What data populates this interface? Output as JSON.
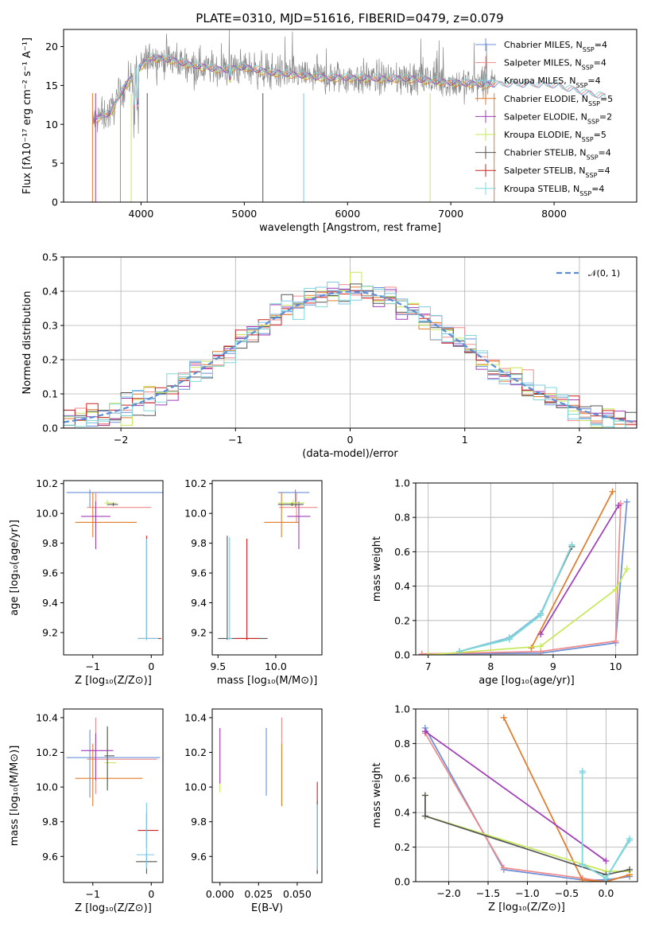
{
  "title": "PLATE=0310, MJD=51616, FIBERID=0479, z=0.079",
  "colors": [
    "#6a8fd8",
    "#f08a8a",
    "#7ec8e3",
    "#e07b2a",
    "#a03cb8",
    "#c7e85a",
    "#555555",
    "#cc2222",
    "#7fd8d8"
  ],
  "chart_data": [
    {
      "type": "line",
      "id": "spectrum",
      "xlabel": "wavelength [Angstrom, rest frame]",
      "ylabel": "Flux [fλ10⁻¹⁷ erg cm⁻² s⁻¹ A⁻¹]",
      "xlim": [
        3250,
        8800
      ],
      "ylim": [
        0,
        22.2
      ],
      "xticks": [
        4000,
        5000,
        6000,
        7000,
        8000
      ],
      "yticks": [
        0,
        5,
        10,
        15,
        20
      ],
      "legend_placement": "upper right",
      "series": [
        {
          "name": "Chabrier MILES, N_SSP=4"
        },
        {
          "name": "Salpeter MILES, N_SSP=4"
        },
        {
          "name": "Kroupa MILES, N_SSP=4"
        },
        {
          "name": "Chabrier ELODIE, N_SSP=5"
        },
        {
          "name": "Salpeter ELODIE, N_SSP=2"
        },
        {
          "name": "Kroupa ELODIE, N_SSP=5"
        },
        {
          "name": "Chabrier STELIB, N_SSP=4"
        },
        {
          "name": "Salpeter STELIB, N_SSP=4"
        },
        {
          "name": "Kroupa STELIB, N_SSP=4"
        }
      ],
      "continuum": [
        [
          3530,
          10.5
        ],
        [
          3700,
          11.5
        ],
        [
          3850,
          15.0
        ],
        [
          4000,
          17.5
        ],
        [
          4100,
          18.6
        ],
        [
          4300,
          18.3
        ],
        [
          4500,
          17.6
        ],
        [
          4800,
          17.0
        ],
        [
          5000,
          17.4
        ],
        [
          5200,
          16.8
        ],
        [
          5500,
          16.4
        ],
        [
          5800,
          16.0
        ],
        [
          6000,
          16.0
        ],
        [
          6300,
          15.9
        ],
        [
          6600,
          15.9
        ],
        [
          7000,
          15.4
        ],
        [
          7400,
          15.1
        ],
        [
          7600,
          15.1
        ],
        [
          8000,
          15.0
        ],
        [
          8300,
          14.0
        ],
        [
          8500,
          13.5
        ]
      ],
      "observed_range": [
        3530,
        7430
      ],
      "model_range": [
        3530,
        8500
      ]
    },
    {
      "type": "line",
      "id": "residuals",
      "xlabel": "(data-model)/error",
      "ylabel": "Normed distribution",
      "xlim": [
        -2.5,
        2.5
      ],
      "ylim": [
        0,
        0.5
      ],
      "xticks": [
        -2,
        -1,
        0,
        1,
        2
      ],
      "xticklabels": [
        "−2",
        "−1",
        "0",
        "1",
        "2"
      ],
      "yticks": [
        0.0,
        0.1,
        0.2,
        0.3,
        0.4,
        0.5
      ],
      "grid": true,
      "reference": {
        "name": "𝒩(0, 1)",
        "mean": 0,
        "sigma": 1
      },
      "legend_placement": "upper right"
    },
    {
      "type": "scatter",
      "id": "age_vs_Z",
      "xlabel": "Z [log₁₀(Z/Z⊙)]",
      "ylabel": "age  [log₁₀(age/yr)]",
      "xlim": [
        -1.5,
        0.2
      ],
      "ylim": [
        9.05,
        10.22
      ],
      "xticks": [
        -1,
        0
      ],
      "xticklabels": [
        "−1",
        "0"
      ],
      "yticks": [
        9.2,
        9.4,
        9.6,
        9.8,
        10.0,
        10.2
      ],
      "points": [
        {
          "x": -1.05,
          "y": 10.14,
          "xerr": [
            0.4,
            1.3
          ],
          "yerr": [
            0.1,
            0.02
          ],
          "c": 0
        },
        {
          "x": -0.95,
          "y": 10.04,
          "xerr": [
            0.15,
            0.95
          ],
          "yerr": [
            0.1,
            0.1
          ],
          "c": 1
        },
        {
          "x": -1.0,
          "y": 9.94,
          "xerr": [
            0.3,
            0.75
          ],
          "yerr": [
            0.1,
            0.2
          ],
          "c": 3
        },
        {
          "x": -0.95,
          "y": 9.98,
          "xerr": [
            0.25,
            0.25
          ],
          "yerr": [
            0.22,
            0.1
          ],
          "c": 4
        },
        {
          "x": -0.75,
          "y": 10.07,
          "xerr": [
            0.05,
            0.15
          ],
          "yerr": [
            0.02,
            0.02
          ],
          "c": 5
        },
        {
          "x": -0.65,
          "y": 10.06,
          "xerr": [
            0.1,
            0.08
          ],
          "yerr": [
            0.01,
            0.01
          ],
          "c": 6
        },
        {
          "x": -0.08,
          "y": 9.16,
          "xerr": [
            0.15,
            0.25
          ],
          "yerr": [
            0.01,
            0.69
          ],
          "c": 7
        },
        {
          "x": -0.08,
          "y": 9.16,
          "xerr": [
            0.15,
            0.2
          ],
          "yerr": [
            0.01,
            0.67
          ],
          "c": 2
        }
      ]
    },
    {
      "type": "scatter",
      "id": "age_vs_mass",
      "xlabel": "mass [log₁₀(M/M⊙)]",
      "ylabel": "",
      "xlim": [
        9.45,
        10.4
      ],
      "ylim": [
        9.05,
        10.22
      ],
      "xticks": [
        9.5,
        10.0
      ],
      "xticklabels": [
        "9.5",
        "10.0"
      ],
      "yticks": [
        9.2,
        9.4,
        9.6,
        9.8,
        10.0,
        10.2
      ],
      "points": [
        {
          "x": 10.17,
          "y": 10.14,
          "xerr": [
            0.15,
            0.12
          ],
          "yerr": [
            0.1,
            0.02
          ],
          "c": 0
        },
        {
          "x": 10.18,
          "y": 10.04,
          "xerr": [
            0.15,
            0.18
          ],
          "yerr": [
            0.1,
            0.1
          ],
          "c": 1
        },
        {
          "x": 10.05,
          "y": 9.94,
          "xerr": [
            0.15,
            0.15
          ],
          "yerr": [
            0.1,
            0.2
          ],
          "c": 3
        },
        {
          "x": 10.2,
          "y": 9.98,
          "xerr": [
            0.1,
            0.1
          ],
          "yerr": [
            0.22,
            0.1
          ],
          "c": 4
        },
        {
          "x": 10.15,
          "y": 10.07,
          "xerr": [
            0.13,
            0.1
          ],
          "yerr": [
            0.02,
            0.02
          ],
          "c": 5
        },
        {
          "x": 10.14,
          "y": 10.06,
          "xerr": [
            0.12,
            0.1
          ],
          "yerr": [
            0.01,
            0.01
          ],
          "c": 6
        },
        {
          "x": 9.58,
          "y": 9.16,
          "xerr": [
            0.08,
            0.35
          ],
          "yerr": [
            0.01,
            0.69
          ],
          "c": 6
        },
        {
          "x": 9.75,
          "y": 9.16,
          "xerr": [
            0.1,
            0.1
          ],
          "yerr": [
            0.01,
            0.67
          ],
          "c": 7
        },
        {
          "x": 9.6,
          "y": 9.16,
          "xerr": [
            0.02,
            0.02
          ],
          "yerr": [
            0.01,
            0.68
          ],
          "c": 2
        }
      ]
    },
    {
      "type": "line",
      "id": "weight_vs_age",
      "xlabel": "age  [log₁₀(age/yr)]",
      "ylabel": "mass weight",
      "xlim": [
        6.8,
        10.35
      ],
      "ylim": [
        0,
        1.0
      ],
      "xticks": [
        7,
        8,
        9,
        10
      ],
      "yticks": [
        0.0,
        0.2,
        0.4,
        0.6,
        0.8,
        1.0
      ],
      "grid": true,
      "series": [
        {
          "c": 0,
          "x": [
            6.9,
            8.8,
            10.0,
            10.18
          ],
          "y": [
            0.005,
            0.01,
            0.07,
            0.89
          ]
        },
        {
          "c": 1,
          "x": [
            6.9,
            8.8,
            10.0,
            10.08
          ],
          "y": [
            0.005,
            0.02,
            0.08,
            0.88
          ]
        },
        {
          "c": 3,
          "x": [
            8.65,
            9.95
          ],
          "y": [
            0.04,
            0.95
          ]
        },
        {
          "c": 4,
          "x": [
            8.8,
            10.05
          ],
          "y": [
            0.12,
            0.87
          ]
        },
        {
          "c": 5,
          "x": [
            7.0,
            8.8,
            10.0,
            10.18
          ],
          "y": [
            0.0,
            0.05,
            0.38,
            0.5
          ]
        },
        {
          "c": 6,
          "x": [
            7.5,
            8.3,
            8.8,
            9.3
          ],
          "y": [
            0.02,
            0.1,
            0.24,
            0.63
          ]
        },
        {
          "c": 2,
          "x": [
            7.5,
            8.3,
            8.8,
            9.3
          ],
          "y": [
            0.02,
            0.1,
            0.24,
            0.64
          ]
        },
        {
          "c": 8,
          "x": [
            7.5,
            8.3,
            8.8,
            9.3
          ],
          "y": [
            0.02,
            0.09,
            0.23,
            0.64
          ]
        }
      ]
    },
    {
      "type": "scatter",
      "id": "mass_vs_Z",
      "xlabel": "Z [log₁₀(Z/Z⊙)]",
      "ylabel": "mass [log₁₀(M/M⊙)]",
      "xlim": [
        -1.5,
        0.2
      ],
      "ylim": [
        9.45,
        10.45
      ],
      "xticks": [
        -1,
        0
      ],
      "xticklabels": [
        "−1",
        "0"
      ],
      "yticks": [
        9.6,
        9.8,
        10.0,
        10.2,
        10.4
      ],
      "points": [
        {
          "x": -1.05,
          "y": 10.17,
          "xerr": [
            0.4,
            1.2
          ],
          "yerr": [
            0.23,
            0.16
          ],
          "c": 0
        },
        {
          "x": -0.95,
          "y": 10.16,
          "xerr": [
            0.15,
            1.05
          ],
          "yerr": [
            0.2,
            0.24
          ],
          "c": 1
        },
        {
          "x": -1.0,
          "y": 10.05,
          "xerr": [
            0.3,
            0.85
          ],
          "yerr": [
            0.16,
            0.2
          ],
          "c": 3
        },
        {
          "x": -0.95,
          "y": 10.21,
          "xerr": [
            0.25,
            0.3
          ],
          "yerr": [
            0.17,
            0.1
          ],
          "c": 4
        },
        {
          "x": -0.75,
          "y": 10.14,
          "xerr": [
            0.05,
            0.15
          ],
          "yerr": [
            0.14,
            0.2
          ],
          "c": 5
        },
        {
          "x": -0.75,
          "y": 10.18,
          "xerr": [
            0.05,
            0.12
          ],
          "yerr": [
            0.2,
            0.17
          ],
          "c": 6
        },
        {
          "x": -0.08,
          "y": 9.57,
          "xerr": [
            0.18,
            0.18
          ],
          "yerr": [
            0.07,
            0.05
          ],
          "c": 6
        },
        {
          "x": -0.08,
          "y": 9.75,
          "xerr": [
            0.15,
            0.2
          ],
          "yerr": [
            0.1,
            0.1
          ],
          "c": 7
        },
        {
          "x": -0.08,
          "y": 9.61,
          "xerr": [
            0.17,
            0.13
          ],
          "yerr": [
            0.08,
            0.3
          ],
          "c": 2
        }
      ]
    },
    {
      "type": "scatter",
      "id": "mass_vs_EBV",
      "xlabel": "E(B-V)",
      "ylabel": "",
      "xlim": [
        -0.005,
        0.066
      ],
      "ylim": [
        9.45,
        10.45
      ],
      "xticks": [
        0.0,
        0.025,
        0.05
      ],
      "xticklabels": [
        "0.000",
        "0.025",
        "0.050"
      ],
      "yticks": [
        9.6,
        9.8,
        10.0,
        10.2,
        10.4
      ],
      "points": [
        {
          "x": 0.0,
          "y": 10.17,
          "yerr": [
            0.2,
            0.17
          ],
          "c": 5
        },
        {
          "x": 0.0,
          "y": 10.2,
          "yerr": [
            0.18,
            0.14
          ],
          "c": 4
        },
        {
          "x": 0.03,
          "y": 10.14,
          "yerr": [
            0.19,
            0.2
          ],
          "c": 0
        },
        {
          "x": 0.04,
          "y": 10.14,
          "yerr": [
            0.25,
            0.26
          ],
          "c": 1
        },
        {
          "x": 0.04,
          "y": 10.05,
          "yerr": [
            0.16,
            0.2
          ],
          "c": 3
        },
        {
          "x": 0.063,
          "y": 9.75,
          "yerr": [
            0.25,
            0.28
          ],
          "c": 7
        },
        {
          "x": 0.063,
          "y": 9.57,
          "yerr": [
            0.07,
            0.35
          ],
          "c": 6
        },
        {
          "x": 0.063,
          "y": 9.62,
          "yerr": [
            0.1,
            0.28
          ],
          "c": 2
        }
      ]
    },
    {
      "type": "line",
      "id": "weight_vs_Z",
      "xlabel": "Z [log₁₀(Z/Z⊙)]",
      "ylabel": "mass weight",
      "xlim": [
        -2.42,
        0.4
      ],
      "ylim": [
        0,
        1.0
      ],
      "xticks": [
        -2.0,
        -1.5,
        -1.0,
        -0.5,
        0.0
      ],
      "xticklabels": [
        "−2.0",
        "−1.5",
        "−1.0",
        "−0.5",
        "0.0"
      ],
      "yticks": [
        0.0,
        0.2,
        0.4,
        0.6,
        0.8,
        1.0
      ],
      "grid": true,
      "series": [
        {
          "c": 0,
          "x": [
            -2.3,
            -1.3,
            -0.3,
            0.0,
            0.3
          ],
          "y": [
            0.89,
            0.07,
            0.01,
            0.01,
            0.03
          ]
        },
        {
          "c": 1,
          "x": [
            -2.3,
            -1.3,
            -0.3,
            0.0,
            0.3
          ],
          "y": [
            0.86,
            0.08,
            0.02,
            0.0,
            0.04
          ]
        },
        {
          "c": 3,
          "x": [
            -1.3,
            -0.3,
            0.0,
            0.3
          ],
          "y": [
            0.95,
            0.01,
            0.0,
            0.04
          ]
        },
        {
          "c": 4,
          "x": [
            -2.3,
            0.0
          ],
          "y": [
            0.87,
            0.12
          ]
        },
        {
          "c": 5,
          "x": [
            -2.3,
            -2.3,
            0.0,
            0.3
          ],
          "y": [
            0.5,
            0.38,
            0.06,
            0.06
          ]
        },
        {
          "c": 6,
          "x": [
            -2.3,
            -2.3,
            0.0,
            0.3
          ],
          "y": [
            0.5,
            0.38,
            0.04,
            0.07
          ]
        },
        {
          "c": 2,
          "x": [
            -0.3,
            -0.3,
            0.0,
            0.3
          ],
          "y": [
            0.64,
            0.1,
            0.02,
            0.24
          ]
        },
        {
          "c": 8,
          "x": [
            -0.3,
            -0.3,
            0.0,
            0.3
          ],
          "y": [
            0.63,
            0.1,
            0.02,
            0.25
          ]
        }
      ]
    }
  ]
}
